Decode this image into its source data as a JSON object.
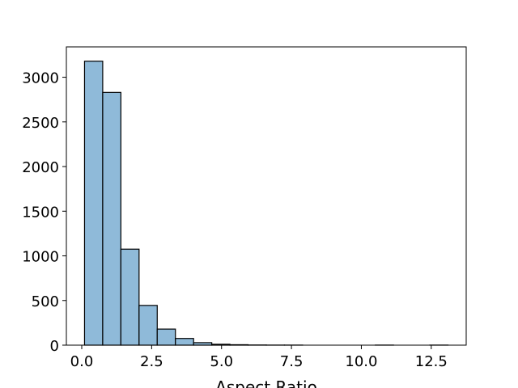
{
  "chart_data": {
    "type": "bar",
    "title": "",
    "xlabel": "Aspect Ratio",
    "ylabel": "",
    "xlim": [
      -0.55,
      13.75
    ],
    "ylim": [
      0,
      3340
    ],
    "x_ticks": [
      0.0,
      2.5,
      5.0,
      7.5,
      10.0,
      12.5
    ],
    "x_tick_labels": [
      "0.0",
      "2.5",
      "5.0",
      "7.5",
      "10.0",
      "12.5"
    ],
    "y_ticks": [
      0,
      500,
      1000,
      1500,
      2000,
      2500,
      3000
    ],
    "y_tick_labels": [
      "0",
      "500",
      "1000",
      "1500",
      "2000",
      "2500",
      "3000"
    ],
    "bin_edges": [
      0.1,
      0.75,
      1.4,
      2.05,
      2.7,
      3.35,
      4.0,
      4.65,
      5.3,
      5.95,
      6.6,
      7.25,
      7.9,
      8.55,
      9.2,
      9.85,
      10.5,
      11.15,
      11.8,
      12.45,
      13.1
    ],
    "values": [
      3180,
      2830,
      1075,
      445,
      180,
      75,
      28,
      10,
      5,
      2,
      1,
      1,
      0,
      0,
      0,
      0,
      1,
      0,
      0,
      1
    ],
    "bar_color": "#8fbad9",
    "edge_color": "#000000",
    "grid": false,
    "legend": "none"
  }
}
